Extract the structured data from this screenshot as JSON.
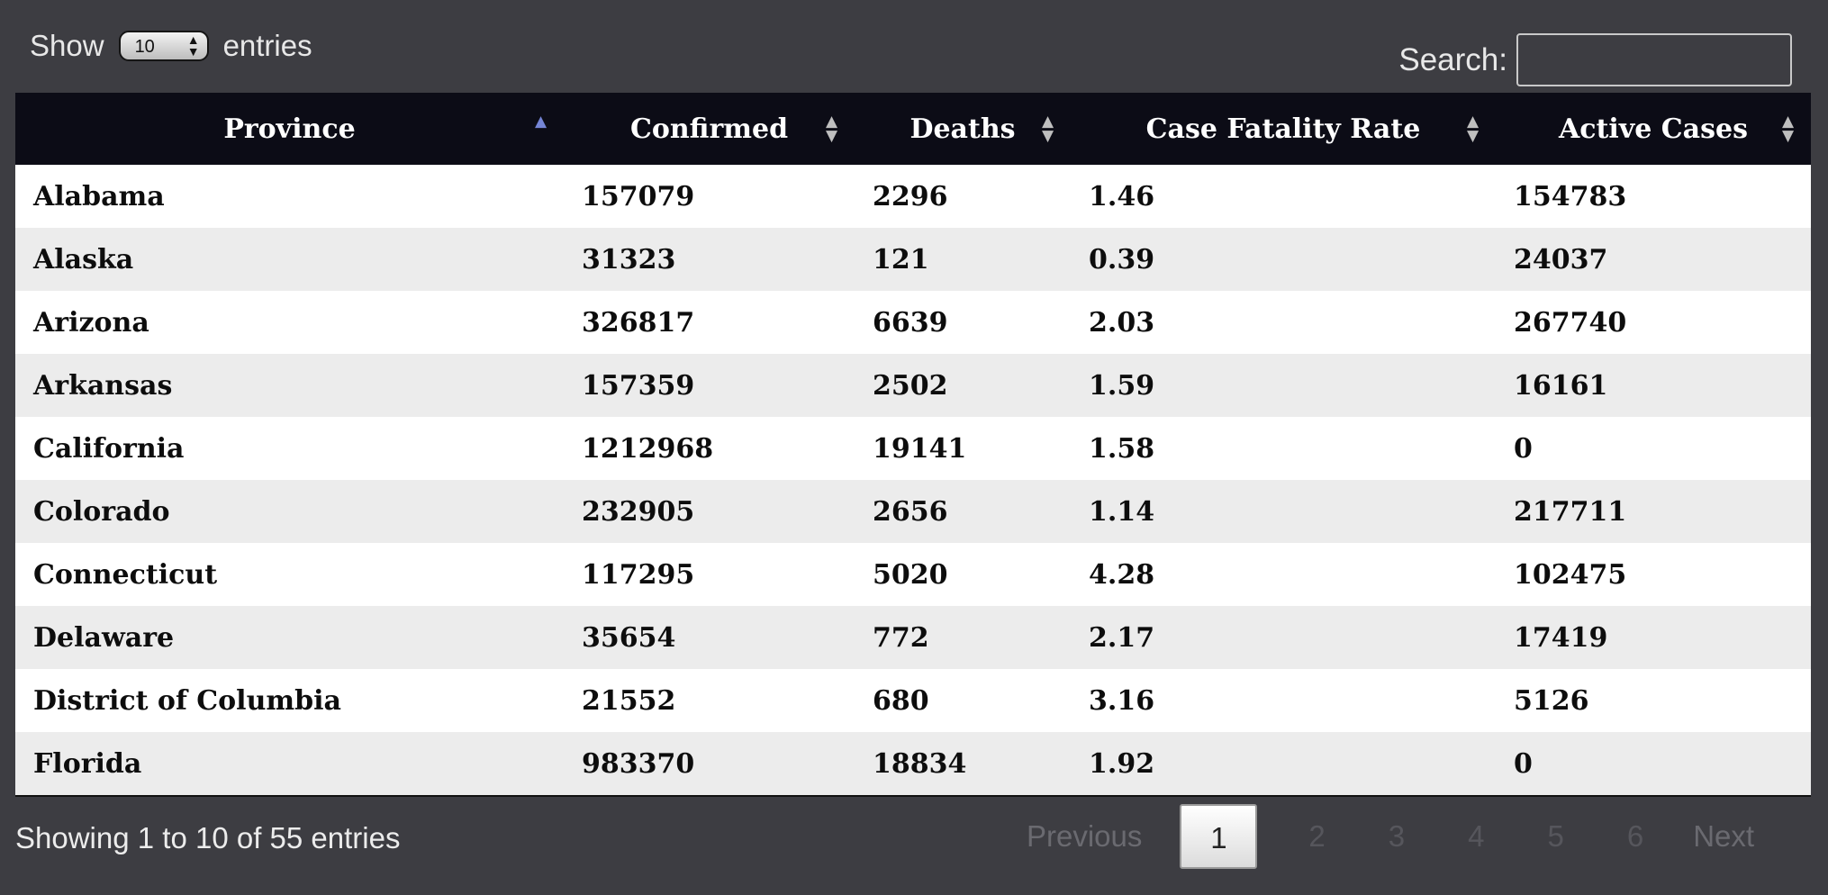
{
  "length": {
    "show": "Show",
    "value": "10",
    "entries": "entries"
  },
  "search": {
    "label": "Search:",
    "value": ""
  },
  "columns": [
    "Province",
    "Confirmed",
    "Deaths",
    "Case Fatality Rate",
    "Active Cases"
  ],
  "rows": [
    [
      "Alabama",
      "157079",
      "2296",
      "1.46",
      "154783"
    ],
    [
      "Alaska",
      "31323",
      "121",
      "0.39",
      "24037"
    ],
    [
      "Arizona",
      "326817",
      "6639",
      "2.03",
      "267740"
    ],
    [
      "Arkansas",
      "157359",
      "2502",
      "1.59",
      "16161"
    ],
    [
      "California",
      "1212968",
      "19141",
      "1.58",
      "0"
    ],
    [
      "Colorado",
      "232905",
      "2656",
      "1.14",
      "217711"
    ],
    [
      "Connecticut",
      "117295",
      "5020",
      "4.28",
      "102475"
    ],
    [
      "Delaware",
      "35654",
      "772",
      "2.17",
      "17419"
    ],
    [
      "District of Columbia",
      "21552",
      "680",
      "3.16",
      "5126"
    ],
    [
      "Florida",
      "983370",
      "18834",
      "1.92",
      "0"
    ]
  ],
  "info": "Showing 1 to 10 of 55 entries",
  "pagination": {
    "previous": "Previous",
    "pages": [
      "1",
      "2",
      "3",
      "4",
      "5",
      "6"
    ],
    "current": "1",
    "next": "Next"
  }
}
